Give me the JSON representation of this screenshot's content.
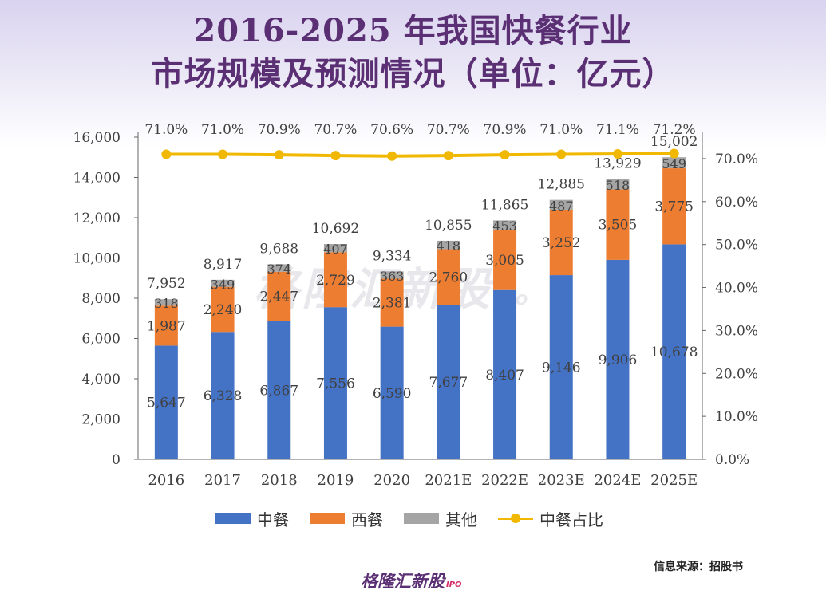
{
  "title": {
    "line1": "2016-2025 年我国快餐行业",
    "line2": "市场规模及预测情况（单位：亿元）"
  },
  "chart_data": {
    "type": "bar",
    "stacked": true,
    "categories": [
      "2016",
      "2017",
      "2018",
      "2019",
      "2020",
      "2021E",
      "2022E",
      "2023E",
      "2024E",
      "2025E"
    ],
    "series": [
      {
        "name": "中餐",
        "color": "#4472c4",
        "values": [
          5647,
          6328,
          6867,
          7556,
          6590,
          7677,
          8407,
          9146,
          9906,
          10678
        ]
      },
      {
        "name": "西餐",
        "color": "#ed7d31",
        "values": [
          1987,
          2240,
          2447,
          2729,
          2381,
          2760,
          3005,
          3252,
          3505,
          3775
        ]
      },
      {
        "name": "其他",
        "color": "#a5a5a5",
        "values": [
          318,
          349,
          374,
          407,
          363,
          418,
          453,
          487,
          518,
          549
        ]
      }
    ],
    "totals": [
      7952,
      8917,
      9688,
      10692,
      9334,
      10855,
      11865,
      12885,
      13929,
      15002
    ],
    "line_series": {
      "name": "中餐占比",
      "color": "#f0b800",
      "axis": "right",
      "values": [
        71.0,
        71.0,
        70.9,
        70.7,
        70.6,
        70.7,
        70.9,
        71.0,
        71.1,
        71.2
      ]
    },
    "yleft": {
      "min": 0,
      "max": 16000,
      "step": 2000
    },
    "yright": {
      "min": 0,
      "max": 75,
      "ticks": [
        0,
        10,
        20,
        30,
        40,
        50,
        60,
        70
      ]
    },
    "legend_position": "bottom"
  },
  "legend": [
    "中餐",
    "西餐",
    "其他",
    "中餐占比"
  ],
  "source": "信息来源：招股书",
  "brand": "格隆汇新股",
  "brand_sub": "IPO",
  "watermark": "格隆汇新股",
  "watermark_sub": "IPO"
}
